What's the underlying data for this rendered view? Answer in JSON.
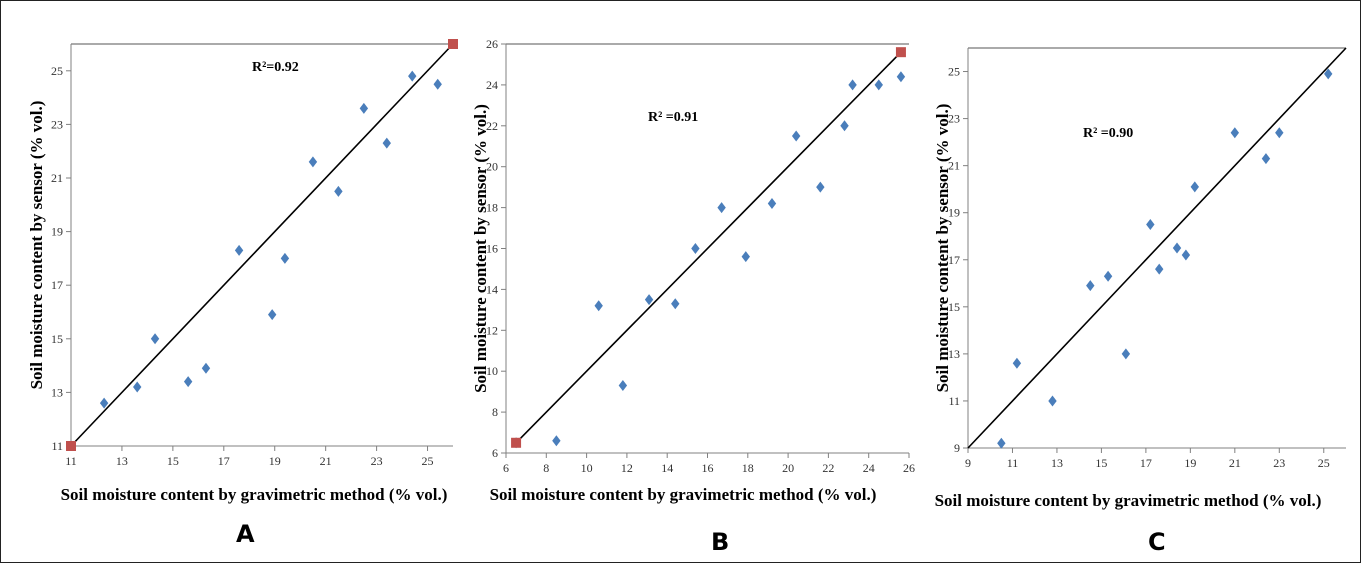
{
  "chart_data": [
    {
      "type": "scatter",
      "panel_label": "A",
      "title": "",
      "xlabel": "Soil moisture content by gravimetric method (% vol.)",
      "ylabel": "Soil moisture content by sensor (% vol.)",
      "r2_label": "R²=0.92",
      "xlim": [
        11,
        26
      ],
      "ylim": [
        11,
        26
      ],
      "x_ticks": [
        11,
        13,
        15,
        17,
        19,
        21,
        23,
        25
      ],
      "y_ticks": [
        11,
        13,
        15,
        17,
        19,
        21,
        23,
        25
      ],
      "grid": false,
      "fit_line": [
        [
          11,
          11
        ],
        [
          26,
          26
        ]
      ],
      "endpoint_markers": [
        [
          11,
          11
        ],
        [
          26,
          26
        ]
      ],
      "series": [
        {
          "marker": "diamond",
          "color": "#4a7ebb",
          "points": [
            [
              12.3,
              12.6
            ],
            [
              13.6,
              13.2
            ],
            [
              14.3,
              15.0
            ],
            [
              15.6,
              13.4
            ],
            [
              16.3,
              13.9
            ],
            [
              17.6,
              18.3
            ],
            [
              18.9,
              15.9
            ],
            [
              19.4,
              18.0
            ],
            [
              20.5,
              21.6
            ],
            [
              21.5,
              20.5
            ],
            [
              22.5,
              23.6
            ],
            [
              23.4,
              22.3
            ],
            [
              24.4,
              24.8
            ],
            [
              25.4,
              24.5
            ]
          ]
        }
      ],
      "colors": {
        "axis": "#808080",
        "fit": "#000000",
        "endpoint": "#c0504d"
      }
    },
    {
      "type": "scatter",
      "panel_label": "B",
      "title": "",
      "xlabel": "Soil moisture content by gravimetric method (% vol.)",
      "ylabel": "Soil moisture content by sensor (% vol.)",
      "r2_label": "R² =0.91",
      "xlim": [
        6,
        26
      ],
      "ylim": [
        6,
        26
      ],
      "x_ticks": [
        6,
        8,
        10,
        12,
        14,
        16,
        18,
        20,
        22,
        24,
        26
      ],
      "y_ticks": [
        6,
        8,
        10,
        12,
        14,
        16,
        18,
        20,
        22,
        24,
        26
      ],
      "grid": false,
      "fit_line": [
        [
          6.5,
          6.5
        ],
        [
          25.6,
          25.6
        ]
      ],
      "endpoint_markers": [
        [
          6.5,
          6.5
        ],
        [
          25.6,
          25.6
        ]
      ],
      "series": [
        {
          "marker": "diamond",
          "color": "#4a7ebb",
          "points": [
            [
              6.5,
              6.5
            ],
            [
              8.5,
              6.6
            ],
            [
              10.6,
              13.2
            ],
            [
              11.8,
              9.3
            ],
            [
              13.1,
              13.5
            ],
            [
              14.4,
              13.3
            ],
            [
              15.4,
              16.0
            ],
            [
              16.7,
              18.0
            ],
            [
              17.9,
              15.6
            ],
            [
              19.2,
              18.2
            ],
            [
              20.4,
              21.5
            ],
            [
              21.6,
              19.0
            ],
            [
              22.8,
              22.0
            ],
            [
              23.2,
              24.0
            ],
            [
              24.5,
              24.0
            ],
            [
              25.6,
              24.4
            ]
          ]
        }
      ],
      "colors": {
        "axis": "#808080",
        "fit": "#000000",
        "endpoint": "#c0504d"
      }
    },
    {
      "type": "scatter",
      "panel_label": "C",
      "title": "",
      "xlabel": "Soil moisture content by gravimetric method (% vol.)",
      "ylabel": "Soil moisture content by sensor (% vol.)",
      "r2_label": "R² =0.90",
      "xlim": [
        9,
        26
      ],
      "ylim": [
        9,
        26
      ],
      "x_ticks": [
        9,
        11,
        13,
        15,
        17,
        19,
        21,
        23,
        25
      ],
      "y_ticks": [
        9,
        11,
        13,
        15,
        17,
        19,
        21,
        23,
        25
      ],
      "grid": false,
      "fit_line": [
        [
          9,
          9
        ],
        [
          26,
          26
        ]
      ],
      "endpoint_markers": [],
      "series": [
        {
          "marker": "diamond",
          "color": "#4a7ebb",
          "points": [
            [
              10.5,
              9.2
            ],
            [
              11.2,
              12.6
            ],
            [
              12.8,
              11.0
            ],
            [
              14.5,
              15.9
            ],
            [
              15.3,
              16.3
            ],
            [
              16.1,
              13.0
            ],
            [
              17.2,
              18.5
            ],
            [
              17.6,
              16.6
            ],
            [
              18.4,
              17.5
            ],
            [
              18.8,
              17.2
            ],
            [
              19.2,
              20.1
            ],
            [
              21.0,
              22.4
            ],
            [
              22.4,
              21.3
            ],
            [
              23.0,
              22.4
            ],
            [
              25.2,
              24.9
            ]
          ]
        }
      ],
      "colors": {
        "axis": "#808080",
        "fit": "#000000",
        "endpoint": "#c0504d"
      }
    }
  ]
}
